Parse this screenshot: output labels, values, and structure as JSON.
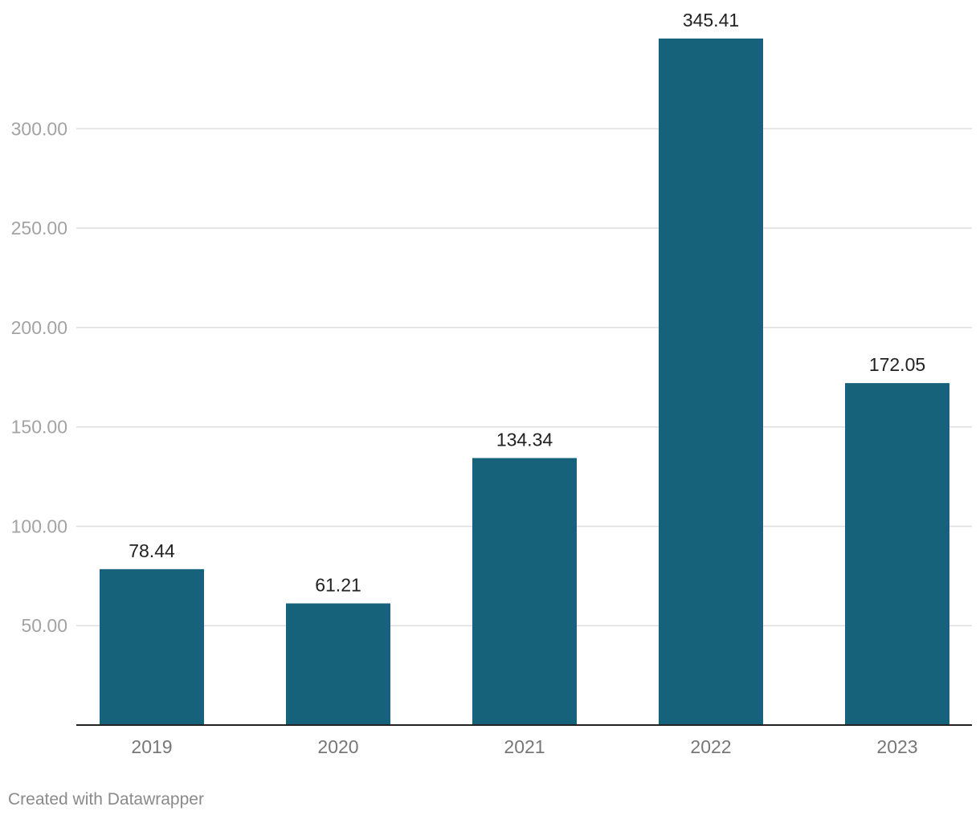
{
  "chart_data": {
    "type": "bar",
    "categories": [
      "2019",
      "2020",
      "2021",
      "2022",
      "2023"
    ],
    "values": [
      78.44,
      61.21,
      134.34,
      345.41,
      172.05
    ],
    "value_labels": [
      "78.44",
      "61.21",
      "134.34",
      "345.41",
      "172.05"
    ],
    "yticks": [
      50,
      100,
      150,
      200,
      250,
      300
    ],
    "ytick_labels": [
      "50.00",
      "100.00",
      "150.00",
      "200.00",
      "250.00",
      "300.00"
    ],
    "ylim": [
      0,
      345.41
    ],
    "title": "",
    "xlabel": "",
    "ylabel": "",
    "grid": true,
    "bar_color": "#17627b"
  },
  "footer": {
    "credit": "Created with Datawrapper"
  }
}
